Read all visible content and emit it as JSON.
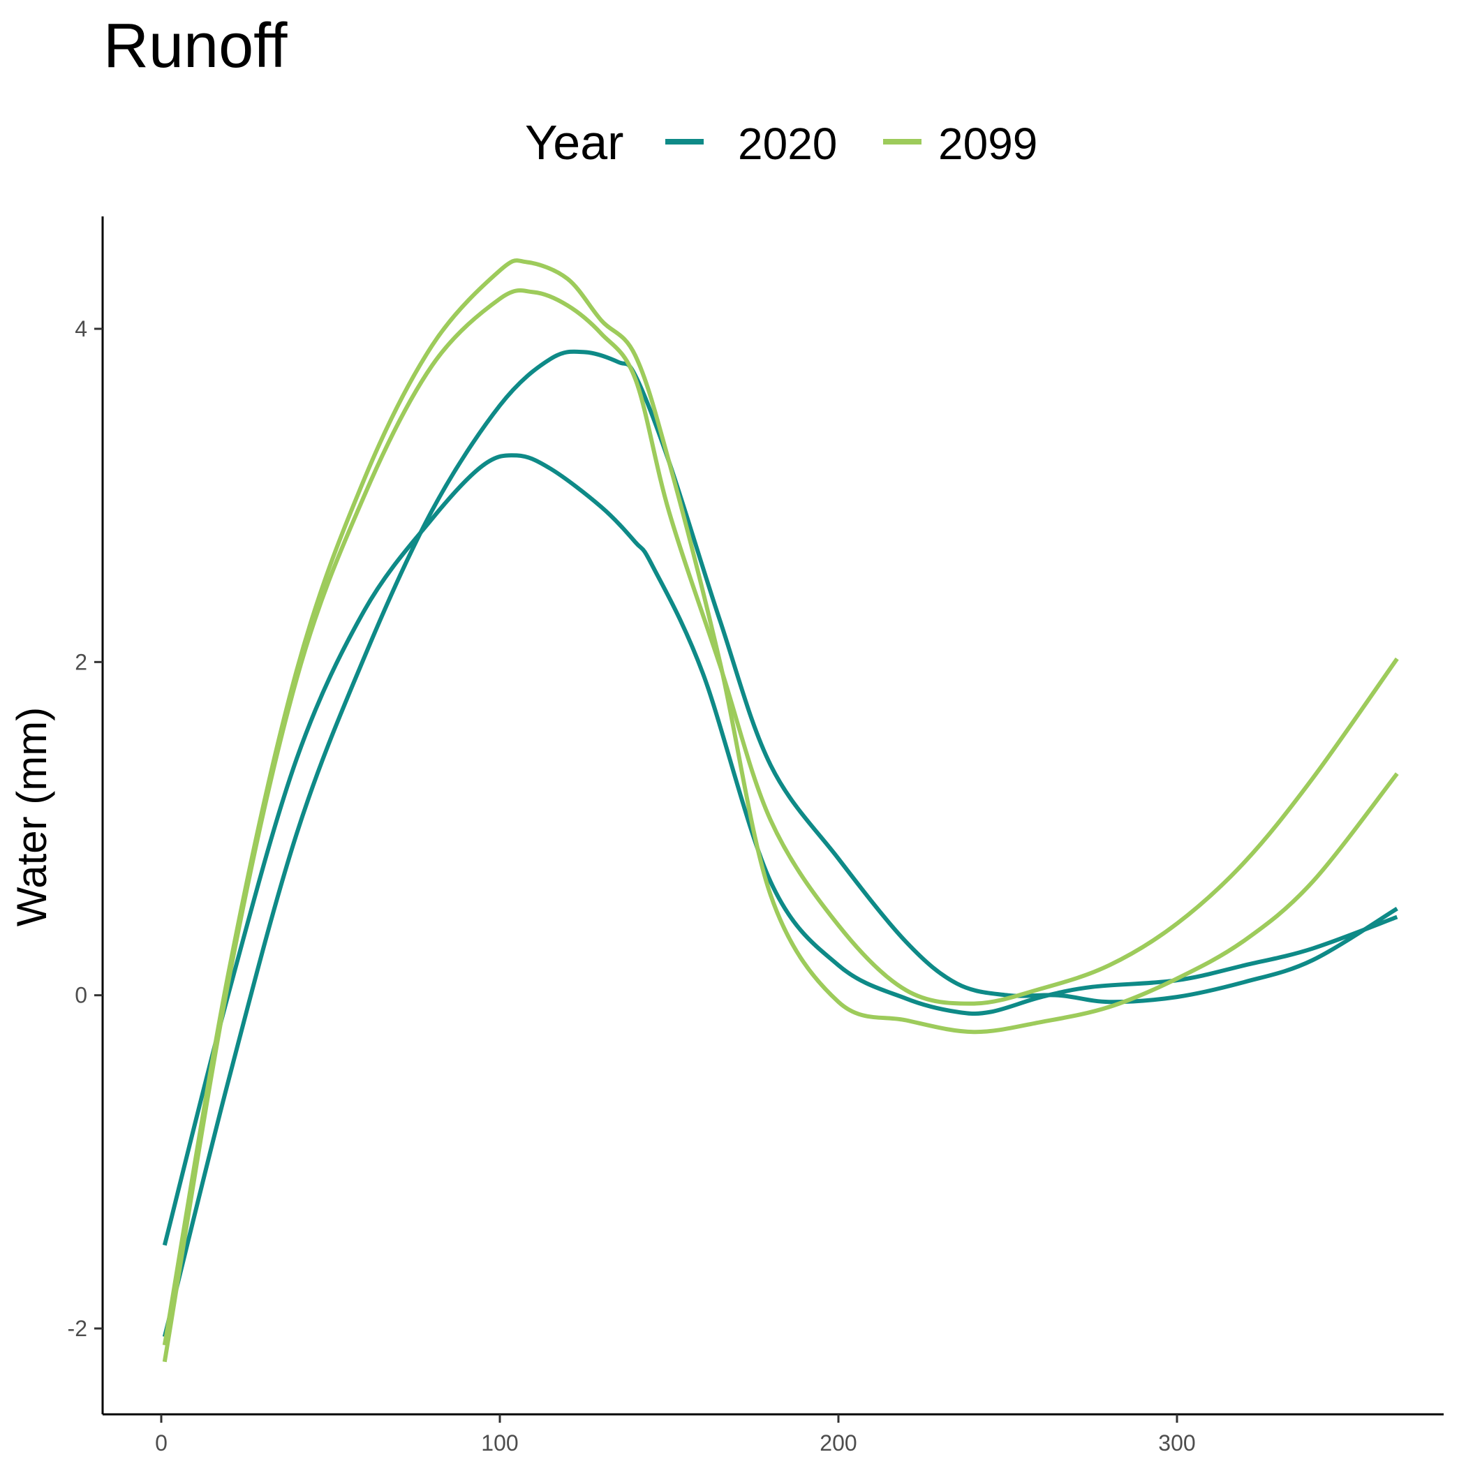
{
  "chart_data": {
    "type": "line",
    "title": "Runoff",
    "xlabel": "",
    "ylabel": "Water (mm)",
    "xlim": [
      -15,
      380
    ],
    "ylim": [
      -2.6,
      4.7
    ],
    "x_ticks": [
      0,
      100,
      200,
      300
    ],
    "x_tick_labels": [
      "0",
      "100",
      "200",
      "300"
    ],
    "y_ticks": [
      -2,
      0,
      2,
      4
    ],
    "y_tick_labels": [
      "-2",
      "0",
      "2",
      "4"
    ],
    "grid": false,
    "legend": {
      "title": "Year",
      "position": "top",
      "entries": [
        {
          "label": "2020",
          "color": "#0E8A87"
        },
        {
          "label": "2099",
          "color": "#9DCB5B"
        }
      ]
    },
    "series": [
      {
        "name": "2020",
        "color": "#0E8A87",
        "points": [
          [
            1,
            -1.5
          ],
          [
            20,
            0.02
          ],
          [
            40,
            1.42
          ],
          [
            60,
            2.31
          ],
          [
            80,
            2.86
          ],
          [
            95,
            3.18
          ],
          [
            105,
            3.24
          ],
          [
            115,
            3.16
          ],
          [
            130,
            2.93
          ],
          [
            140,
            2.72
          ],
          [
            145,
            2.58
          ],
          [
            160,
            1.93
          ],
          [
            180,
            0.68
          ],
          [
            200,
            0.18
          ],
          [
            220,
            -0.02
          ],
          [
            235,
            -0.1
          ],
          [
            245,
            -0.1
          ],
          [
            260,
            -0.01
          ],
          [
            275,
            0.05
          ],
          [
            300,
            0.09
          ],
          [
            320,
            0.18
          ],
          [
            340,
            0.28
          ],
          [
            365,
            0.47
          ]
        ]
      },
      {
        "name": "2020",
        "color": "#0E8A87",
        "points": [
          [
            1,
            -2.05
          ],
          [
            20,
            -0.5
          ],
          [
            40,
            0.97
          ],
          [
            60,
            2.03
          ],
          [
            80,
            2.91
          ],
          [
            100,
            3.54
          ],
          [
            115,
            3.82
          ],
          [
            125,
            3.86
          ],
          [
            135,
            3.8
          ],
          [
            140,
            3.72
          ],
          [
            150,
            3.2
          ],
          [
            165,
            2.25
          ],
          [
            180,
            1.38
          ],
          [
            200,
            0.82
          ],
          [
            220,
            0.32
          ],
          [
            235,
            0.07
          ],
          [
            250,
            0.0
          ],
          [
            265,
            0.0
          ],
          [
            280,
            -0.04
          ],
          [
            300,
            -0.01
          ],
          [
            320,
            0.08
          ],
          [
            340,
            0.21
          ],
          [
            365,
            0.52
          ]
        ]
      },
      {
        "name": "2099",
        "color": "#9DCB5B",
        "points": [
          [
            1,
            -2.1
          ],
          [
            20,
            0.15
          ],
          [
            40,
            1.95
          ],
          [
            60,
            3.1
          ],
          [
            80,
            3.9
          ],
          [
            100,
            4.35
          ],
          [
            108,
            4.4
          ],
          [
            120,
            4.3
          ],
          [
            130,
            4.05
          ],
          [
            140,
            3.84
          ],
          [
            150,
            3.2
          ],
          [
            165,
            2.0
          ],
          [
            180,
            0.6
          ],
          [
            200,
            -0.04
          ],
          [
            220,
            -0.15
          ],
          [
            240,
            -0.22
          ],
          [
            260,
            -0.16
          ],
          [
            280,
            -0.07
          ],
          [
            300,
            0.1
          ],
          [
            320,
            0.33
          ],
          [
            340,
            0.68
          ],
          [
            365,
            1.33
          ]
        ]
      },
      {
        "name": "2099",
        "color": "#9DCB5B",
        "points": [
          [
            1,
            -2.2
          ],
          [
            20,
            0.1
          ],
          [
            40,
            1.9
          ],
          [
            60,
            3.0
          ],
          [
            80,
            3.78
          ],
          [
            100,
            4.18
          ],
          [
            110,
            4.22
          ],
          [
            120,
            4.14
          ],
          [
            130,
            3.97
          ],
          [
            140,
            3.7
          ],
          [
            150,
            2.9
          ],
          [
            165,
            1.98
          ],
          [
            180,
            1.05
          ],
          [
            200,
            0.42
          ],
          [
            220,
            0.03
          ],
          [
            240,
            -0.05
          ],
          [
            260,
            0.04
          ],
          [
            280,
            0.18
          ],
          [
            300,
            0.43
          ],
          [
            320,
            0.8
          ],
          [
            340,
            1.3
          ],
          [
            365,
            2.02
          ]
        ]
      }
    ]
  }
}
